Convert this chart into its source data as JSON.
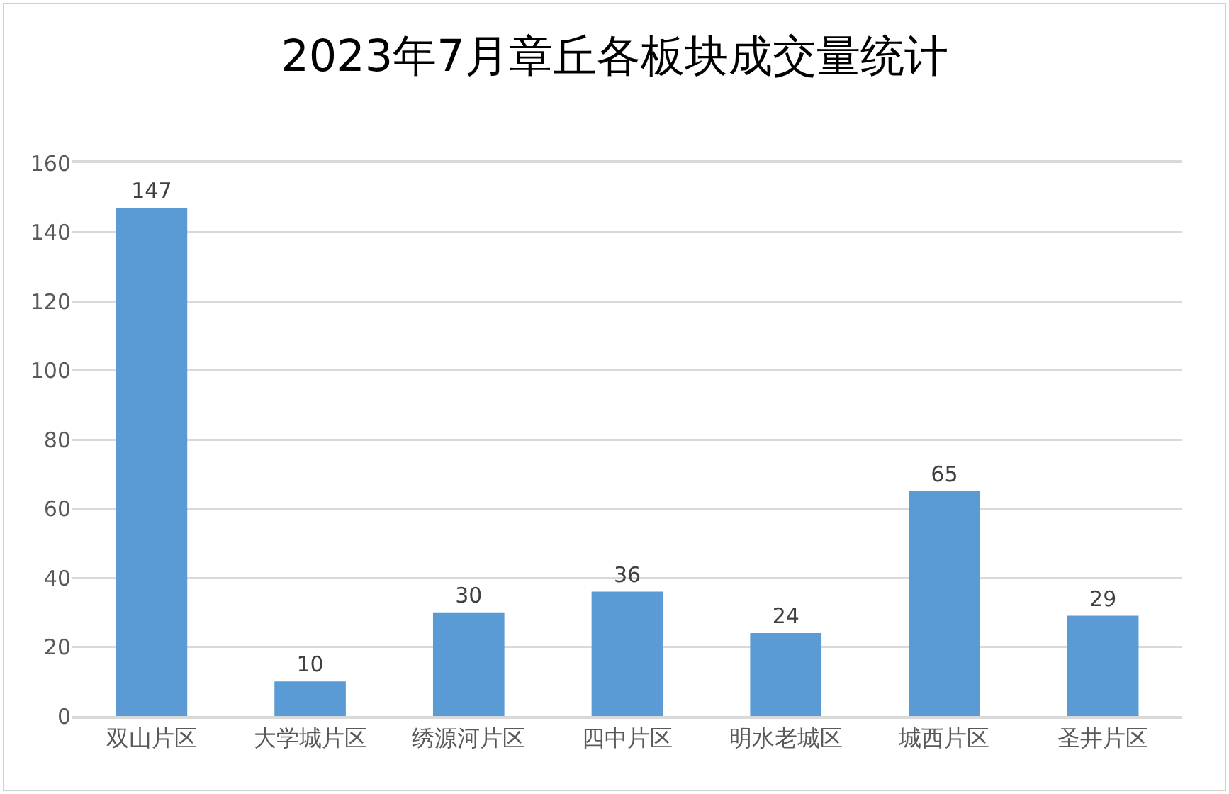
{
  "chart_data": {
    "type": "bar",
    "title": "2023年7月章丘各板块成交量统计",
    "categories": [
      "双山片区",
      "大学城片区",
      "绣源河片区",
      "四中片区",
      "明水老城区",
      "城西片区",
      "圣井片区"
    ],
    "values": [
      147,
      10,
      30,
      36,
      24,
      65,
      29
    ],
    "color": "#5b9bd5",
    "ylim": [
      0,
      160
    ],
    "yticks": [
      0,
      20,
      40,
      60,
      80,
      100,
      120,
      140,
      160
    ],
    "grid": "y",
    "data_labels": true
  }
}
